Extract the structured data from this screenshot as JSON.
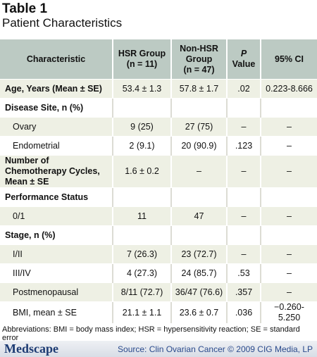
{
  "header": {
    "title": "Table 1",
    "subtitle": "Patient Characteristics"
  },
  "table": {
    "columns": [
      [
        "Characteristic"
      ],
      [
        "HSR Group",
        "(n = 11)"
      ],
      [
        "Non-HSR",
        "Group",
        "(n = 47)"
      ],
      [
        "P",
        "Value"
      ],
      [
        "95% CI"
      ]
    ],
    "sections": [
      {
        "label": "Age, Years (Mean ± SE)",
        "values": [
          "53.4 ± 1.3",
          "57.8 ± 1.7",
          ".02",
          "0.223-8.666"
        ]
      },
      {
        "label": "Disease Site, n (%)",
        "rows": [
          [
            "Ovary",
            "9 (25)",
            "27 (75)",
            "–",
            "–"
          ],
          [
            "Endometrial",
            "2 (9.1)",
            "20 (90.9)",
            ".123",
            "–"
          ]
        ]
      },
      {
        "label": "Number of Chemotherapy Cycles, Mean ± SE",
        "values": [
          "1.6 ± 0.2",
          "–",
          "–",
          "–"
        ]
      },
      {
        "label": "Performance Status",
        "rows": [
          [
            "0/1",
            "11",
            "47",
            "–",
            "–"
          ]
        ]
      },
      {
        "label": "Stage, n (%)",
        "rows": [
          [
            "I/II",
            "7 (26.3)",
            "23 (72.7)",
            "–",
            "–"
          ],
          [
            "III/IV",
            "4 (27.3)",
            "24 (85.7)",
            ".53",
            "–"
          ],
          [
            "Postmenopausal",
            "8/11 (72.7)",
            "36/47 (76.6)",
            ".357",
            "–"
          ],
          [
            "BMI, mean ± SE",
            "21.1 ± 1.1",
            "23.6 ± 0.7",
            ".036",
            "−0.260-5.250"
          ]
        ]
      }
    ]
  },
  "footnote": "Abbreviations: BMI = body mass index; HSR = hypersensitivity reaction; SE = standard error",
  "footer": {
    "logo": "Medscape",
    "source": "Source: Clin Ovarian Cancer © 2009 CIG Media, LP"
  }
}
